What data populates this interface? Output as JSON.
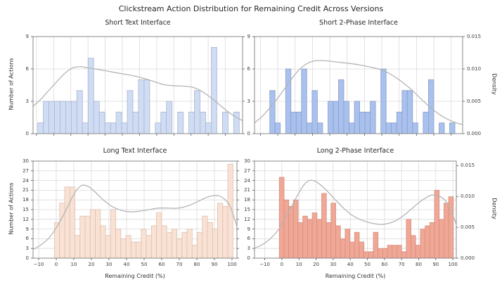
{
  "figure": {
    "title": "Clickstream Action Distribution for Remaining Credit Across Versions"
  },
  "axis_labels": {
    "x": "Remaining Credit (%)",
    "y_left": "Number of Actions",
    "y_right": "Density"
  },
  "x_tick_labels": [
    "−10",
    "0",
    "10",
    "20",
    "30",
    "40",
    "50",
    "60",
    "70",
    "80",
    "90",
    "100"
  ],
  "x_tick_values": [
    -10,
    0,
    10,
    20,
    30,
    40,
    50,
    60,
    70,
    80,
    90,
    100
  ],
  "density_tick_labels": [
    "0.000",
    "0.005",
    "0.010",
    "0.015"
  ],
  "colors": {
    "grid": "#dadada",
    "spine": "#8a8a8a",
    "kde_line": "#b5b5b5",
    "short_text_bar": "#cfdcf3",
    "short_text_edge": "#a9b6cf",
    "short_2phase_bar": "#a9c1ee",
    "short_2phase_edge": "#8d9dc6",
    "long_text_bar": "#f9e2d4",
    "long_text_edge": "#dcc0af",
    "long_2phase_bar": "#f1a795",
    "long_2phase_edge": "#d39080"
  },
  "chart_data": [
    {
      "id": "short_text",
      "type": "bar",
      "subtype": "histogram_with_kde",
      "title": "Short Text Interface",
      "xlim": [
        -12,
        110
      ],
      "ylim": [
        0,
        9
      ],
      "y_ticks": [
        0,
        3,
        6,
        9
      ],
      "y_tick_labels": [
        "0",
        "3",
        "6",
        "9"
      ],
      "grid": true,
      "bin_start": -9.3,
      "bin_width": 3.26,
      "counts": [
        1,
        3,
        3,
        3,
        3,
        3,
        3,
        4,
        1,
        7,
        3,
        2,
        1,
        1,
        2,
        1,
        4,
        2,
        5,
        5,
        0,
        1,
        2,
        3,
        0,
        2,
        0,
        2,
        4,
        2,
        1,
        8,
        0,
        2,
        0,
        2
      ],
      "kde": [
        [
          -12,
          2.55
        ],
        [
          -8,
          3.1
        ],
        [
          -4,
          3.8
        ],
        [
          0,
          4.5
        ],
        [
          4,
          5.2
        ],
        [
          8,
          5.8
        ],
        [
          12,
          6.15
        ],
        [
          16,
          6.2
        ],
        [
          20,
          6.1
        ],
        [
          26,
          5.95
        ],
        [
          33,
          5.75
        ],
        [
          40,
          5.55
        ],
        [
          47,
          5.35
        ],
        [
          53,
          5.1
        ],
        [
          58,
          4.85
        ],
        [
          64,
          4.55
        ],
        [
          70,
          4.45
        ],
        [
          76,
          4.4
        ],
        [
          81,
          4.3
        ],
        [
          86,
          3.95
        ],
        [
          91,
          3.4
        ],
        [
          96,
          2.75
        ],
        [
          101,
          2.1
        ],
        [
          106,
          1.55
        ],
        [
          110,
          1.2
        ]
      ]
    },
    {
      "id": "short_2phase",
      "type": "bar",
      "subtype": "histogram_with_kde",
      "title": "Short 2-Phase Interface",
      "xlim": [
        -13.4,
        106.6
      ],
      "ylim": [
        0,
        9
      ],
      "y_ticks": [
        0,
        3,
        6,
        9
      ],
      "y_tick_labels": [
        "0",
        "3",
        "6",
        "9"
      ],
      "grid": true,
      "bin_start": -4.6,
      "bin_width": 3.05,
      "counts": [
        4,
        1,
        0,
        6,
        2,
        2,
        6,
        1,
        4,
        1,
        0,
        3,
        3,
        5,
        3,
        1,
        3,
        2,
        2,
        3,
        0,
        6,
        1,
        1,
        2,
        4,
        4,
        1,
        0,
        2,
        5,
        0,
        1,
        0,
        1
      ],
      "density_positions_in_counts": [
        0,
        3,
        6,
        9
      ],
      "kde": [
        [
          -13.4,
          1.0
        ],
        [
          -9,
          1.6
        ],
        [
          -4,
          2.5
        ],
        [
          0,
          3.3
        ],
        [
          5,
          4.4
        ],
        [
          10,
          5.5
        ],
        [
          15,
          6.3
        ],
        [
          20,
          6.7
        ],
        [
          25,
          6.78
        ],
        [
          30,
          6.72
        ],
        [
          36,
          6.6
        ],
        [
          42,
          6.5
        ],
        [
          48,
          6.35
        ],
        [
          54,
          6.15
        ],
        [
          59,
          5.95
        ],
        [
          64,
          5.6
        ],
        [
          69,
          5.1
        ],
        [
          74,
          4.5
        ],
        [
          79,
          3.8
        ],
        [
          84,
          3.0
        ],
        [
          89,
          2.3
        ],
        [
          94,
          1.7
        ],
        [
          99,
          1.25
        ],
        [
          103,
          1.0
        ],
        [
          106.6,
          0.85
        ]
      ]
    },
    {
      "id": "long_text",
      "type": "bar",
      "subtype": "histogram_with_kde",
      "title": "Long Text Interface",
      "xlim": [
        -13.2,
        102.8
      ],
      "ylim": [
        0,
        30
      ],
      "y_ticks": [
        0,
        3,
        6,
        9,
        12,
        15,
        18,
        21,
        24,
        27,
        30
      ],
      "y_tick_labels": [
        "0",
        "3",
        "6",
        "9",
        "12",
        "15",
        "18",
        "21",
        "24",
        "27",
        "30"
      ],
      "grid": true,
      "bin_start": -1,
      "bin_width": 2.9,
      "counts": [
        11,
        17,
        22,
        22,
        7,
        13,
        13,
        15,
        15,
        10,
        7,
        15,
        9,
        6,
        7,
        5,
        5,
        9,
        7,
        10,
        14,
        10,
        8,
        9,
        6,
        8,
        9,
        4,
        8,
        13,
        11,
        9,
        17,
        16,
        29
      ],
      "kde": [
        [
          -13.2,
          2.7
        ],
        [
          -9,
          4.0
        ],
        [
          -4,
          6.3
        ],
        [
          0,
          9.4
        ],
        [
          4,
          13.2
        ],
        [
          8,
          17.6
        ],
        [
          11,
          20.6
        ],
        [
          14,
          22.3
        ],
        [
          16,
          22.55
        ],
        [
          19,
          21.9
        ],
        [
          23,
          20.0
        ],
        [
          27,
          17.9
        ],
        [
          32,
          15.9
        ],
        [
          37,
          14.8
        ],
        [
          42,
          14.3
        ],
        [
          47,
          14.5
        ],
        [
          52,
          14.9
        ],
        [
          57,
          15.4
        ],
        [
          62,
          15.5
        ],
        [
          67,
          15.4
        ],
        [
          71,
          15.6
        ],
        [
          76,
          16.4
        ],
        [
          81,
          17.6
        ],
        [
          86,
          18.9
        ],
        [
          90,
          19.35
        ],
        [
          93,
          19.2
        ],
        [
          96,
          18.1
        ],
        [
          99,
          15.9
        ],
        [
          102.8,
          9.9
        ]
      ]
    },
    {
      "id": "long_2phase",
      "type": "bar",
      "subtype": "histogram_with_kde",
      "title": "Long 2-Phase Interface",
      "xlim": [
        -16,
        102
      ],
      "ylim": [
        0,
        30
      ],
      "y_ticks": [
        0,
        3,
        6,
        9,
        12,
        15,
        18,
        21,
        24,
        27,
        30
      ],
      "y_tick_labels": [
        "0",
        "3",
        "6",
        "9",
        "12",
        "15",
        "18",
        "21",
        "24",
        "27",
        "30"
      ],
      "grid": true,
      "bin_start": -1.5,
      "bin_width": 2.75,
      "counts": [
        25,
        18,
        16,
        18,
        11,
        13,
        12,
        14,
        12,
        20,
        11,
        17,
        10,
        6,
        9,
        5,
        8,
        5,
        2,
        2,
        8,
        3,
        3,
        4,
        4,
        4,
        2,
        12,
        7,
        4,
        9,
        10,
        11,
        21,
        12,
        17,
        19
      ],
      "density_positions_in_counts": [
        0,
        9.53,
        19.07,
        28.6
      ],
      "kde": [
        [
          -16,
          3.1
        ],
        [
          -12,
          4.0
        ],
        [
          -7,
          5.9
        ],
        [
          -2,
          8.8
        ],
        [
          2,
          12.4
        ],
        [
          6,
          16.4
        ],
        [
          10,
          20.2
        ],
        [
          13,
          22.7
        ],
        [
          16,
          24.0
        ],
        [
          19,
          23.9
        ],
        [
          22,
          22.9
        ],
        [
          26,
          21.0
        ],
        [
          31,
          18.2
        ],
        [
          36,
          15.5
        ],
        [
          41,
          13.3
        ],
        [
          46,
          11.9
        ],
        [
          51,
          11.0
        ],
        [
          56,
          10.5
        ],
        [
          60,
          10.5
        ],
        [
          64,
          11.0
        ],
        [
          68,
          12.0
        ],
        [
          72,
          13.5
        ],
        [
          76,
          15.3
        ],
        [
          80,
          17.1
        ],
        [
          84,
          18.6
        ],
        [
          87,
          19.4
        ],
        [
          90,
          19.5
        ],
        [
          93,
          18.9
        ],
        [
          96,
          17.5
        ],
        [
          99,
          14.5
        ],
        [
          102,
          10.5
        ]
      ]
    }
  ]
}
